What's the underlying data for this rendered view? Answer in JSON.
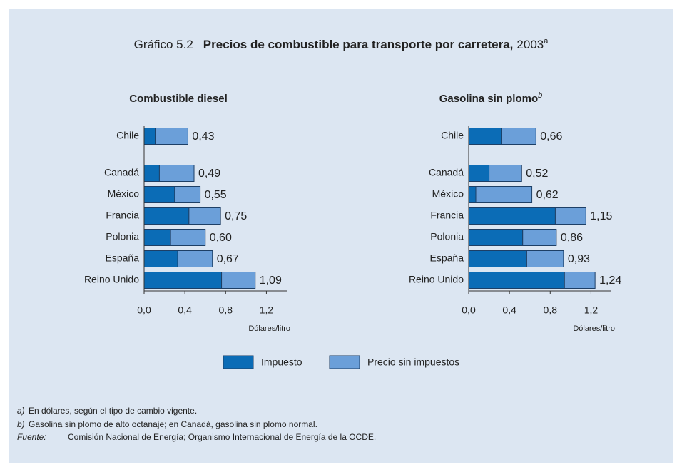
{
  "title": {
    "prefix": "Gráfico 5.2",
    "main": "Precios de combustible para transporte por carretera,",
    "year": "2003",
    "note": "a"
  },
  "legend": [
    {
      "name": "Impuesto",
      "color": "#0b6cb6"
    },
    {
      "name": "Precio sin impuestos",
      "color": "#6b9fd9"
    }
  ],
  "chart_data": [
    {
      "type": "bar",
      "orientation": "horizontal",
      "stacked": true,
      "title": "Combustible diesel",
      "categories": [
        "Chile",
        "Canadá",
        "México",
        "Francia",
        "Polonia",
        "España",
        "Reino Unido"
      ],
      "series": [
        {
          "color": "#0b6cb6",
          "values": [
            0.11,
            0.15,
            0.3,
            0.44,
            0.26,
            0.33,
            0.76
          ]
        },
        {
          "color": "#6b9fd9",
          "values": [
            0.32,
            0.34,
            0.25,
            0.31,
            0.34,
            0.34,
            0.33
          ]
        }
      ],
      "totals": {
        "values": [
          0.43,
          0.49,
          0.55,
          0.75,
          0.6,
          0.67,
          1.09
        ],
        "value_labels": [
          "0,43",
          "0,49",
          "0,55",
          "0,75",
          "0,60",
          "0,67",
          "1,09"
        ]
      },
      "xlim": [
        0,
        1.4
      ],
      "xticks": [
        {
          "value": 0,
          "label": "0,0"
        },
        {
          "value": 0.4,
          "label": "0,4"
        },
        {
          "value": 0.8,
          "label": "0,8"
        },
        {
          "value": 1.2,
          "label": "1,2"
        }
      ],
      "xlabel": "Dólares/litro"
    },
    {
      "type": "bar",
      "orientation": "horizontal",
      "stacked": true,
      "title": "Gasolina sin plomo",
      "title_note": "b",
      "categories": [
        "Chile",
        "Canadá",
        "México",
        "Francia",
        "Polonia",
        "España",
        "Reino Unido"
      ],
      "series": [
        {
          "color": "#0b6cb6",
          "values": [
            0.32,
            0.2,
            0.07,
            0.85,
            0.53,
            0.57,
            0.94
          ]
        },
        {
          "color": "#6b9fd9",
          "values": [
            0.34,
            0.32,
            0.55,
            0.3,
            0.33,
            0.36,
            0.3
          ]
        }
      ],
      "totals": {
        "values": [
          0.66,
          0.52,
          0.62,
          1.15,
          0.86,
          0.93,
          1.24
        ],
        "value_labels": [
          "0,66",
          "0,52",
          "0,62",
          "1,15",
          "0,86",
          "0,93",
          "1,24"
        ]
      },
      "xlim": [
        0,
        1.4
      ],
      "xticks": [
        {
          "value": 0,
          "label": "0,0"
        },
        {
          "value": 0.4,
          "label": "0,4"
        },
        {
          "value": 0.8,
          "label": "0,8"
        },
        {
          "value": 1.2,
          "label": "1,2"
        }
      ],
      "xlabel": "Dólares/litro"
    }
  ],
  "footnotes": [
    {
      "mark": "a)",
      "text": "En dólares, según el tipo de cambio vigente."
    },
    {
      "mark": "b)",
      "text": "Gasolina sin plomo de alto octanaje; en Canadá, gasolina sin plomo normal."
    },
    {
      "mark": "Fuente:",
      "text": "Comisión Nacional de Energía; Organismo Internacional de Energía de la OCDE."
    }
  ]
}
